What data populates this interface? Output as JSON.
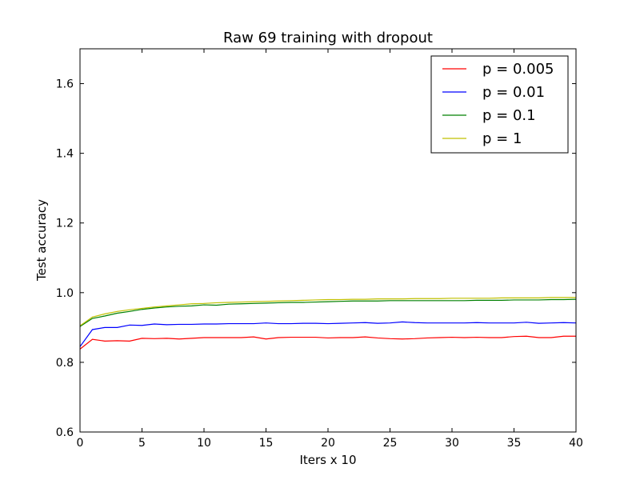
{
  "chart_data": {
    "type": "line",
    "title": "Raw 69 training with dropout",
    "xlabel": "Iters x 10",
    "ylabel": "Test accuracy",
    "xlim": [
      0,
      40
    ],
    "ylim": [
      0.6,
      1.7
    ],
    "xticks": [
      0,
      5,
      10,
      15,
      20,
      25,
      30,
      35,
      40
    ],
    "yticks": [
      0.6,
      0.8,
      1.0,
      1.2,
      1.4,
      1.6
    ],
    "xtick_labels": [
      "0",
      "5",
      "10",
      "15",
      "20",
      "25",
      "30",
      "35",
      "40"
    ],
    "ytick_labels": [
      "0.6",
      "0.8",
      "1.0",
      "1.2",
      "1.4",
      "1.6"
    ],
    "grid": false,
    "legend_position": "top-right",
    "x": [
      0,
      1,
      2,
      3,
      4,
      5,
      6,
      7,
      8,
      9,
      10,
      11,
      12,
      13,
      14,
      15,
      16,
      17,
      18,
      19,
      20,
      21,
      22,
      23,
      24,
      25,
      26,
      27,
      28,
      29,
      30,
      31,
      32,
      33,
      34,
      35,
      36,
      37,
      38,
      39,
      40
    ],
    "series": [
      {
        "name": "p = 0.005",
        "color": "#ff0000",
        "values": [
          0.838,
          0.866,
          0.861,
          0.862,
          0.861,
          0.869,
          0.868,
          0.869,
          0.867,
          0.869,
          0.871,
          0.871,
          0.871,
          0.871,
          0.873,
          0.867,
          0.871,
          0.872,
          0.872,
          0.872,
          0.87,
          0.871,
          0.871,
          0.873,
          0.87,
          0.868,
          0.867,
          0.868,
          0.87,
          0.871,
          0.872,
          0.871,
          0.872,
          0.871,
          0.871,
          0.874,
          0.875,
          0.871,
          0.871,
          0.875,
          0.875
        ]
      },
      {
        "name": "p = 0.01",
        "color": "#0000ff",
        "values": [
          0.845,
          0.894,
          0.9,
          0.9,
          0.907,
          0.906,
          0.91,
          0.908,
          0.909,
          0.909,
          0.91,
          0.91,
          0.911,
          0.911,
          0.911,
          0.913,
          0.911,
          0.911,
          0.912,
          0.912,
          0.911,
          0.912,
          0.913,
          0.914,
          0.912,
          0.913,
          0.916,
          0.914,
          0.913,
          0.913,
          0.913,
          0.913,
          0.914,
          0.913,
          0.913,
          0.913,
          0.915,
          0.912,
          0.913,
          0.914,
          0.913
        ]
      },
      {
        "name": "p = 0.1",
        "color": "#008000",
        "values": [
          0.903,
          0.926,
          0.933,
          0.941,
          0.946,
          0.952,
          0.956,
          0.959,
          0.961,
          0.962,
          0.965,
          0.964,
          0.967,
          0.968,
          0.969,
          0.97,
          0.971,
          0.972,
          0.972,
          0.973,
          0.974,
          0.975,
          0.976,
          0.976,
          0.976,
          0.977,
          0.977,
          0.977,
          0.977,
          0.977,
          0.977,
          0.977,
          0.978,
          0.978,
          0.978,
          0.979,
          0.979,
          0.979,
          0.98,
          0.98,
          0.981
        ]
      },
      {
        "name": "p = 1",
        "color": "#c0c000",
        "values": [
          0.905,
          0.93,
          0.939,
          0.946,
          0.951,
          0.955,
          0.959,
          0.962,
          0.965,
          0.968,
          0.969,
          0.971,
          0.972,
          0.973,
          0.974,
          0.975,
          0.976,
          0.977,
          0.978,
          0.979,
          0.98,
          0.98,
          0.981,
          0.981,
          0.982,
          0.982,
          0.982,
          0.983,
          0.983,
          0.983,
          0.984,
          0.984,
          0.984,
          0.984,
          0.985,
          0.985,
          0.985,
          0.985,
          0.986,
          0.986,
          0.986
        ]
      }
    ]
  }
}
